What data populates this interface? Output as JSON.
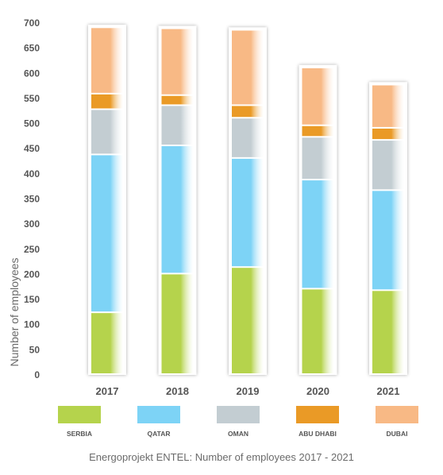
{
  "chart_data": {
    "type": "bar",
    "stacked": true,
    "categories": [
      "2017",
      "2018",
      "2019",
      "2020",
      "2021"
    ],
    "series": [
      {
        "name": "SERBIA",
        "color": "#b5d34c",
        "values": [
          123,
          200,
          213,
          170,
          167
        ]
      },
      {
        "name": "QATAR",
        "color": "#7dd3f6",
        "values": [
          314,
          255,
          217,
          217,
          199
        ]
      },
      {
        "name": "OMAN",
        "color": "#c3cdd2",
        "values": [
          90,
          80,
          80,
          85,
          100
        ]
      },
      {
        "name": "ABU DHABI",
        "color": "#ea9a26",
        "values": [
          31,
          20,
          25,
          23,
          24
        ]
      },
      {
        "name": "DUBAI",
        "color": "#f8b985",
        "values": [
          132,
          133,
          150,
          115,
          86
        ]
      }
    ],
    "ylabel": "Number of employees",
    "xlabel": "",
    "ylim": [
      0,
      700
    ],
    "yticks": [
      "0",
      "50",
      "100",
      "150",
      "200",
      "250",
      "300",
      "350",
      "400",
      "450",
      "500",
      "550",
      "600",
      "650",
      "700"
    ],
    "grid": false,
    "legend_position": "bottom",
    "caption": "Energoprojekt ENTEL: Number of employees 2017 - 2021"
  }
}
